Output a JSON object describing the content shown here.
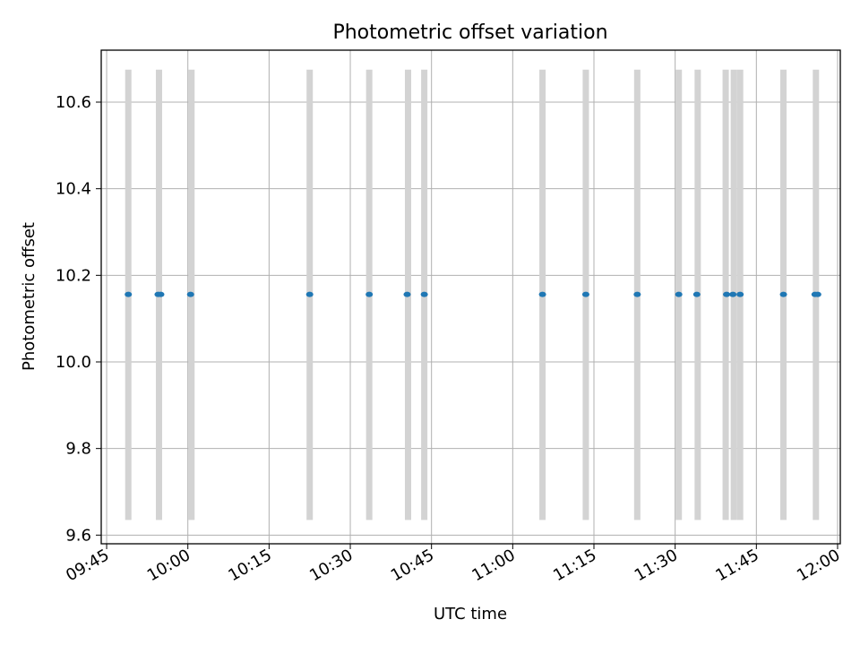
{
  "chart_data": {
    "type": "scatter",
    "title": "Photometric offset variation",
    "xlabel": "UTC time",
    "ylabel": "Photometric offset",
    "xlim": [
      "09:44",
      "12:00:30"
    ],
    "ylim": [
      9.58,
      10.72
    ],
    "x_ticks": [
      "09:45",
      "10:00",
      "10:15",
      "10:30",
      "10:45",
      "11:00",
      "11:15",
      "11:30",
      "11:45",
      "12:00"
    ],
    "y_ticks": [
      "9.6",
      "9.8",
      "10.0",
      "10.2",
      "10.4",
      "10.6"
    ],
    "grid": true,
    "series": [
      {
        "color": "#1f77b4",
        "x": [
          "09:49:00",
          "09:54:30",
          "09:55:00",
          "10:00:30",
          "10:22:30",
          "10:33:30",
          "10:40:30",
          "10:43:40",
          "11:05:30",
          "11:13:30",
          "11:23:00",
          "11:30:40",
          "11:34:00",
          "11:39:30",
          "11:40:40",
          "11:42:00",
          "11:50:00",
          "11:55:50",
          "11:56:20"
        ],
        "y": [
          10.156,
          10.156,
          10.156,
          10.156,
          10.156,
          10.156,
          10.156,
          10.156,
          10.156,
          10.156,
          10.156,
          10.156,
          10.156,
          10.156,
          10.156,
          10.156,
          10.156,
          10.156,
          10.156
        ]
      }
    ],
    "bands": {
      "color": "#d3d3d3",
      "y_range": [
        9.635,
        10.675
      ],
      "x": [
        "09:49:00",
        "09:54:40",
        "10:00:40",
        "10:22:30",
        "10:33:30",
        "10:40:40",
        "10:43:40",
        "11:05:30",
        "11:13:30",
        "11:23:00",
        "11:30:40",
        "11:34:10",
        "11:39:20",
        "11:40:50",
        "11:42:00",
        "11:50:00",
        "11:56:00"
      ]
    }
  }
}
